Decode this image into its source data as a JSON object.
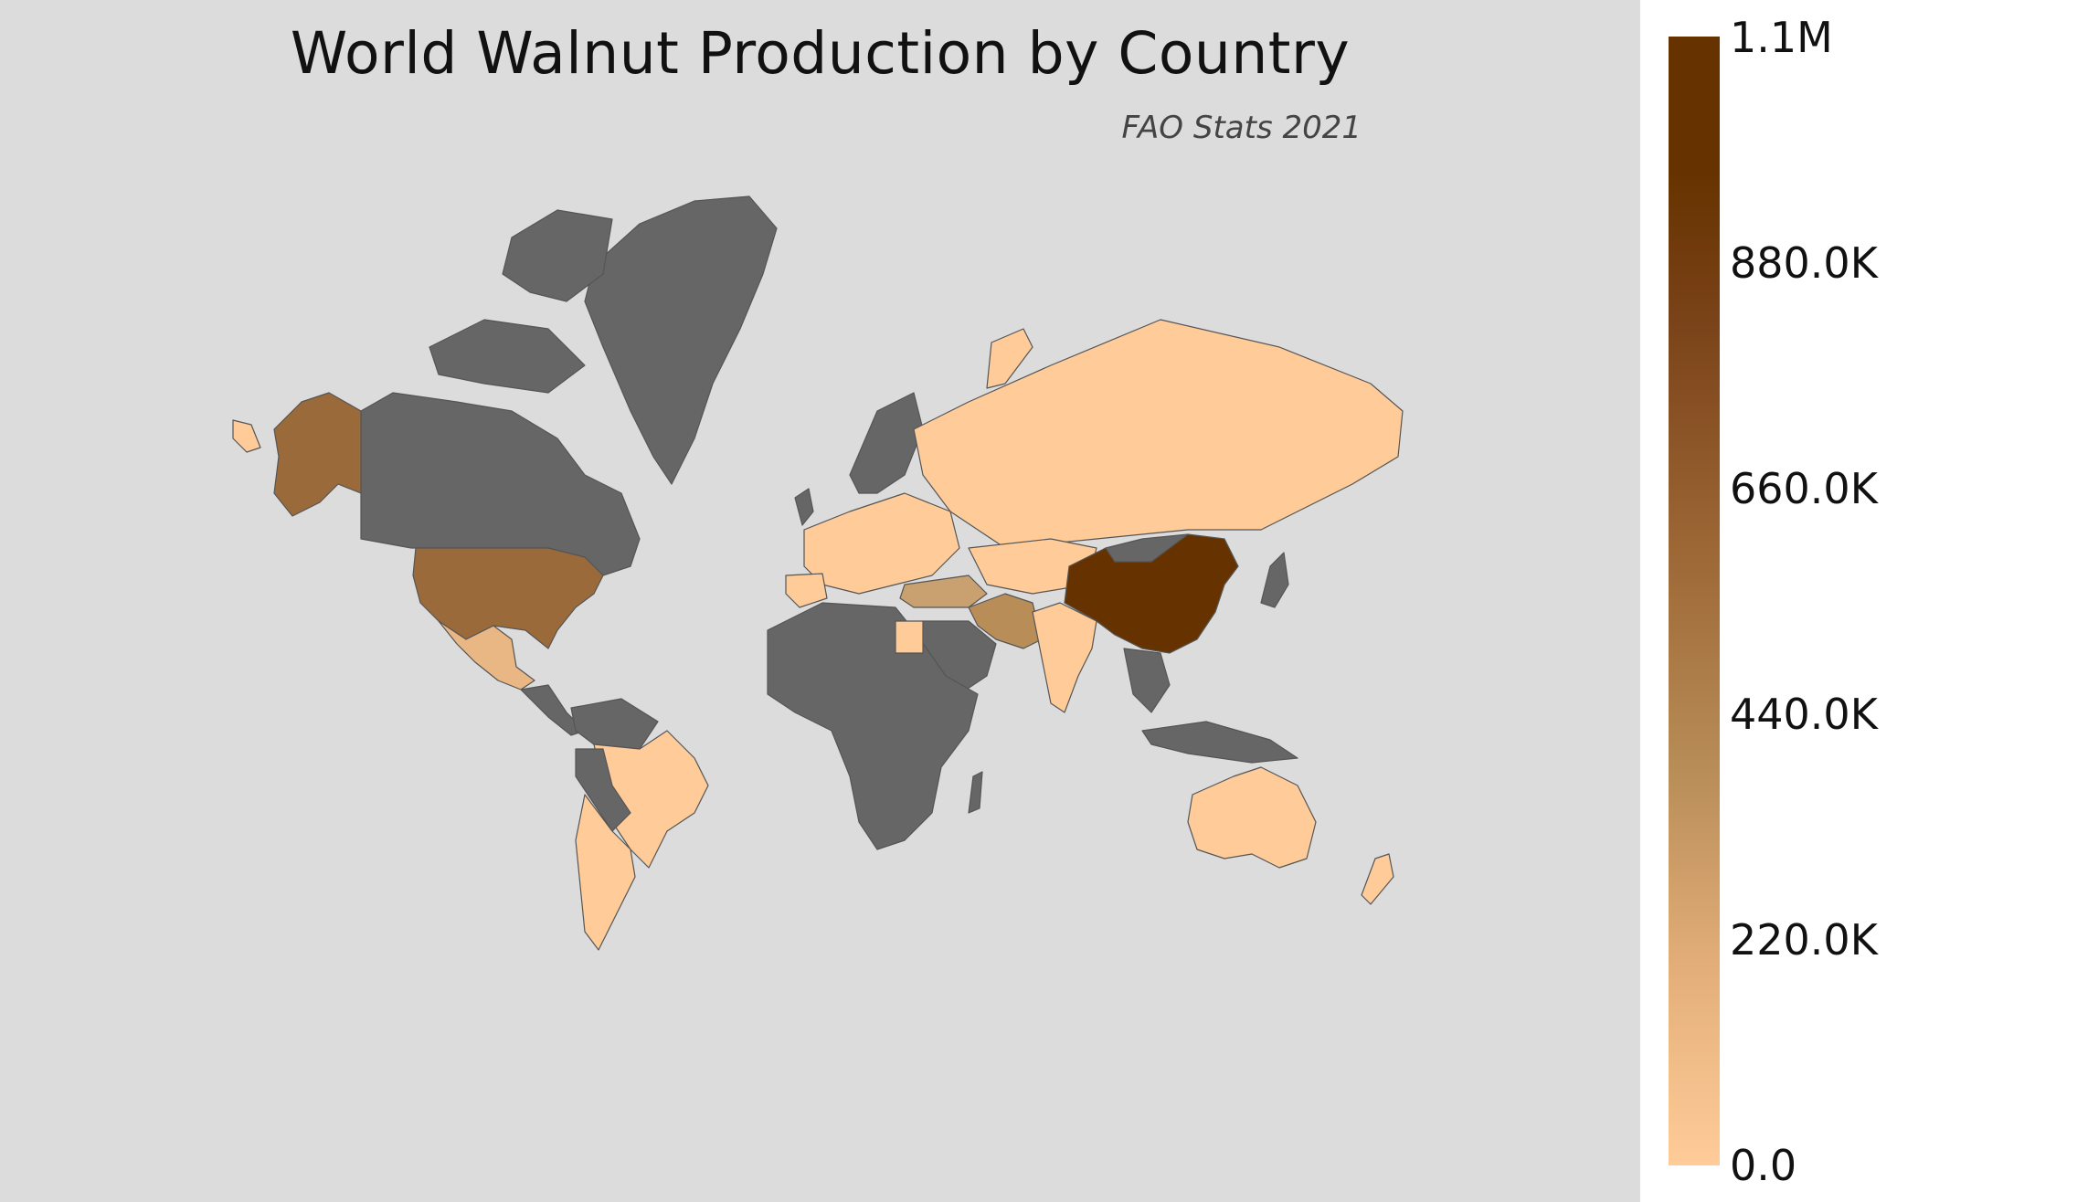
{
  "map": {
    "title": "World Walnut Production by Country",
    "subtitle": "FAO Stats 2021",
    "background_color": "#dcdcdc",
    "no_data_color": "#666666",
    "colorscale": [
      "#ffcc99",
      "#c9a070",
      "#b88d58",
      "#9c6635",
      "#663300"
    ],
    "regions": [
      {
        "name": "China",
        "value_level": "max",
        "color": "#663300"
      },
      {
        "name": "United States",
        "value_level": "high",
        "color": "#9b6a3a"
      },
      {
        "name": "Alaska",
        "value_level": "high",
        "color": "#9b6a3a"
      },
      {
        "name": "Iran",
        "value_level": "medium",
        "color": "#b88d58"
      },
      {
        "name": "Turkey",
        "value_level": "low-medium",
        "color": "#c9a070"
      },
      {
        "name": "Mexico",
        "value_level": "low",
        "color": "#e8b783"
      },
      {
        "name": "Russia",
        "value_level": "low",
        "color": "#ffcc99"
      },
      {
        "name": "Europe",
        "value_level": "low",
        "color": "#ffcc99"
      },
      {
        "name": "India",
        "value_level": "low",
        "color": "#ffcc99"
      },
      {
        "name": "Brazil",
        "value_level": "low",
        "color": "#ffcc99"
      },
      {
        "name": "Argentina",
        "value_level": "low",
        "color": "#ffcc99"
      },
      {
        "name": "Chile",
        "value_level": "low",
        "color": "#ffcc99"
      },
      {
        "name": "Australia",
        "value_level": "low",
        "color": "#ffcc99"
      },
      {
        "name": "New Zealand",
        "value_level": "low",
        "color": "#ffcc99"
      }
    ]
  },
  "colorbar": {
    "ticks": [
      "1.1M",
      "880.0K",
      "660.0K",
      "440.0K",
      "220.0K",
      "0.0"
    ],
    "min_color": "#ffcc99",
    "max_color": "#663300"
  }
}
